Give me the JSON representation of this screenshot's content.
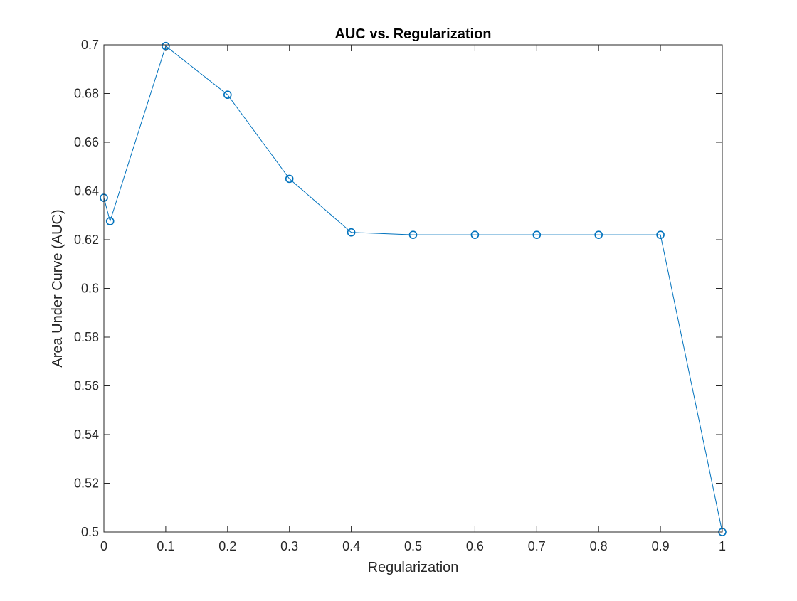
{
  "chart_data": {
    "type": "line",
    "title": "AUC vs. Regularization",
    "xlabel": "Regularization",
    "ylabel": "Area Under Curve (AUC)",
    "xlim": [
      0,
      1
    ],
    "ylim": [
      0.5,
      0.7
    ],
    "xticks": [
      0,
      0.1,
      0.2,
      0.3,
      0.4,
      0.5,
      0.6,
      0.7,
      0.8,
      0.9,
      1
    ],
    "xtick_labels": [
      "0",
      "0.1",
      "0.2",
      "0.3",
      "0.4",
      "0.5",
      "0.6",
      "0.7",
      "0.8",
      "0.9",
      "1"
    ],
    "yticks": [
      0.5,
      0.52,
      0.54,
      0.56,
      0.58,
      0.6,
      0.62,
      0.64,
      0.66,
      0.68,
      0.7
    ],
    "ytick_labels": [
      "0.5",
      "0.52",
      "0.54",
      "0.56",
      "0.58",
      "0.6",
      "0.62",
      "0.64",
      "0.66",
      "0.68",
      "0.7"
    ],
    "grid": false,
    "legend": "none",
    "marker": "circle-open",
    "series": [
      {
        "color": "#0072BD",
        "x": [
          0,
          0.01,
          0.1,
          0.2,
          0.3,
          0.4,
          0.5,
          0.6,
          0.7,
          0.8,
          0.9,
          1
        ],
        "y": [
          0.6372,
          0.6276,
          0.6995,
          0.6795,
          0.645,
          0.623,
          0.622,
          0.622,
          0.622,
          0.622,
          0.622,
          0.5
        ]
      }
    ]
  }
}
